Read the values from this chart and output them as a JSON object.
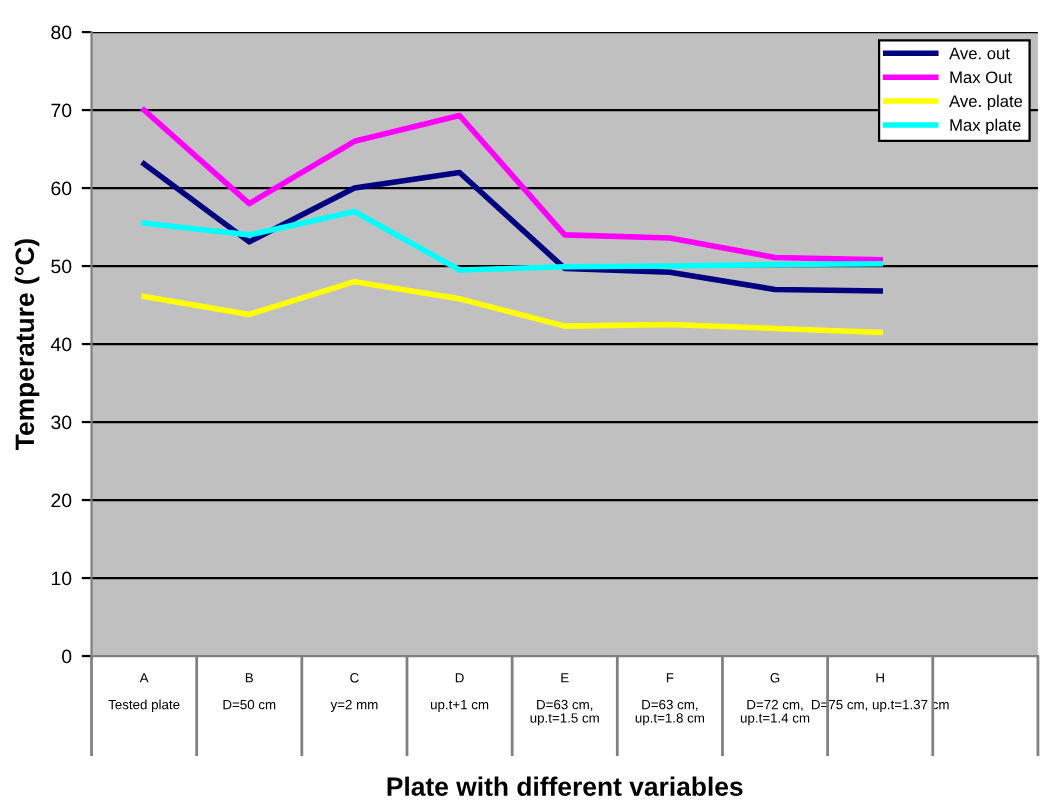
{
  "chart_data": {
    "type": "line",
    "xlabel": "Plate with different variables",
    "ylabel": "Temperature (°C)",
    "categories": [
      "A\n\nTested plate",
      "B\n\nD=50 cm",
      "C\n\ny=2 mm",
      "D\n\nup.t+1 cm",
      "E\n\nD=63 cm,\nup.t=1.5 cm",
      "F\n\nD=63 cm,\nup.t=1.8 cm",
      "G\n\nD=72 cm,\nup.t=1.4 cm",
      "H\n\nD=75 cm, up.t=1.37 cm",
      null
    ],
    "series": [
      {
        "name": "Ave. out",
        "color": "#000080",
        "values": [
          63.1,
          53.1,
          60,
          62,
          49.7,
          49.2,
          47,
          46.8,
          null
        ]
      },
      {
        "name": "Max Out",
        "color": "#ff00ff",
        "values": [
          70,
          58,
          66,
          69.3,
          54,
          53.6,
          51.1,
          50.8,
          null
        ]
      },
      {
        "name": "Ave. plate",
        "color": "#ffff00",
        "values": [
          46.1,
          43.8,
          48,
          45.8,
          42.3,
          42.5,
          42,
          41.5,
          null
        ]
      },
      {
        "name": "Max plate",
        "color": "#00ffff",
        "values": [
          55.5,
          54,
          57,
          49.5,
          49.9,
          50,
          50.2,
          50.3,
          null
        ]
      }
    ],
    "ylim": [
      0,
      80
    ],
    "yticks": [
      0,
      10,
      20,
      30,
      40,
      50,
      60,
      70,
      80
    ],
    "grid": "y",
    "legend": "top right",
    "marker": "none",
    "line_style": "solid"
  }
}
